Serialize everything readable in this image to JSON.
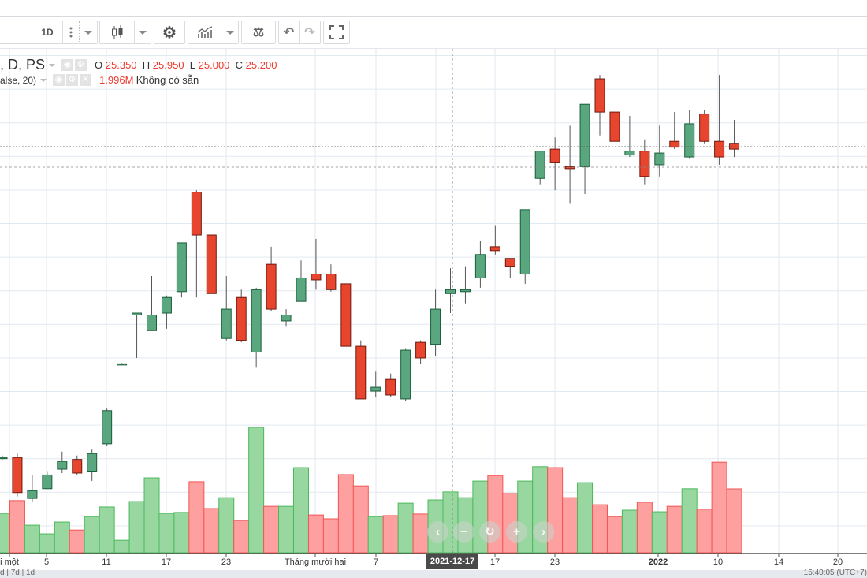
{
  "toolbar": {
    "interval_label": "1D",
    "icons": [
      "candlestick-icon",
      "gear-icon",
      "indicators-icon",
      "compare-scale-icon",
      "undo-icon",
      "redo-icon",
      "fullscreen-icon"
    ]
  },
  "legend": {
    "symbol_suffix": ", D, PS",
    "ohlc": {
      "o_label": "O",
      "o": "25.350",
      "h_label": "H",
      "h": "25.950",
      "l_label": "L",
      "l": "25.000",
      "c_label": "C",
      "c": "25.200"
    },
    "volume_study": "alse, 20)",
    "volume_value": "1.996M",
    "volume_ma": "Không có sẵn"
  },
  "x_axis": {
    "ticks": [
      "i một",
      "5",
      "11",
      "17",
      "23",
      "Tháng mười hai",
      "7",
      "17",
      "23",
      "2022",
      "10",
      "14",
      "20"
    ],
    "crosshair_label": "2021-12-17"
  },
  "bottom_bar": {
    "left": "d | 7d | 1d",
    "right": "15:40:05 (UTC+7)"
  },
  "colors": {
    "up": "#5aa67f",
    "up_border": "#1b5e3c",
    "down": "#e8452f",
    "down_border": "#6e1a0f",
    "vol_up": "#98d8a0",
    "vol_up_border": "#4bb85b",
    "vol_down": "#ffa0a0",
    "vol_down_border": "#f25555",
    "grid": "#e1e9f1"
  },
  "chart_data": {
    "type": "candlestick",
    "ohlc_order": [
      "open",
      "high",
      "low",
      "close"
    ],
    "candles": [
      [
        17.3,
        17.35,
        17.25,
        17.3
      ],
      [
        17.3,
        17.4,
        16.3,
        16.4
      ],
      [
        16.25,
        16.85,
        16.15,
        16.45
      ],
      [
        16.5,
        16.95,
        16.5,
        16.85
      ],
      [
        17.0,
        17.45,
        16.9,
        17.2
      ],
      [
        17.25,
        17.35,
        16.85,
        16.9
      ],
      [
        16.95,
        17.5,
        16.7,
        17.4
      ],
      [
        17.65,
        18.55,
        17.6,
        18.5
      ],
      [
        19.7,
        19.72,
        19.68,
        19.7
      ],
      [
        20.95,
        21.0,
        19.85,
        21.0
      ],
      [
        20.55,
        21.95,
        20.55,
        20.95
      ],
      [
        21.0,
        21.45,
        20.6,
        21.4
      ],
      [
        21.55,
        22.8,
        21.4,
        22.8
      ],
      [
        24.1,
        24.15,
        21.4,
        23.0
      ],
      [
        23.0,
        23.0,
        21.5,
        21.5
      ],
      [
        20.35,
        21.95,
        20.3,
        21.1
      ],
      [
        21.4,
        21.6,
        20.25,
        20.3
      ],
      [
        20.0,
        21.65,
        19.6,
        21.6
      ],
      [
        22.25,
        22.7,
        21.05,
        21.1
      ],
      [
        20.8,
        21.1,
        20.65,
        20.95
      ],
      [
        21.3,
        22.35,
        21.3,
        21.9
      ],
      [
        22.0,
        22.9,
        21.6,
        21.85
      ],
      [
        22.0,
        22.25,
        21.55,
        21.6
      ],
      [
        21.75,
        21.75,
        20.15,
        20.15
      ],
      [
        20.15,
        20.3,
        18.8,
        18.8
      ],
      [
        19.0,
        19.5,
        18.85,
        19.1
      ],
      [
        19.3,
        19.45,
        18.85,
        18.9
      ],
      [
        18.8,
        20.1,
        18.75,
        20.05
      ],
      [
        20.25,
        20.3,
        19.7,
        19.85
      ],
      [
        20.2,
        21.6,
        19.9,
        21.1
      ],
      [
        21.5,
        22.15,
        21.0,
        21.6
      ],
      [
        21.55,
        22.2,
        21.25,
        21.6
      ],
      [
        21.9,
        22.85,
        21.65,
        22.5
      ],
      [
        22.7,
        23.25,
        22.5,
        22.6
      ],
      [
        22.4,
        22.4,
        21.9,
        22.2
      ],
      [
        22.0,
        23.65,
        21.75,
        23.65
      ],
      [
        24.45,
        25.15,
        24.3,
        25.15
      ],
      [
        25.2,
        25.5,
        24.15,
        24.85
      ],
      [
        24.75,
        25.8,
        23.8,
        24.7
      ],
      [
        24.75,
        26.35,
        24.05,
        26.35
      ],
      [
        27.0,
        27.1,
        25.55,
        26.15
      ],
      [
        26.15,
        26.15,
        25.4,
        25.4
      ],
      [
        25.05,
        26.05,
        25.0,
        25.15
      ],
      [
        25.15,
        25.45,
        24.3,
        24.5
      ],
      [
        24.8,
        25.8,
        24.5,
        25.1
      ],
      [
        25.4,
        26.15,
        25.2,
        25.25
      ],
      [
        25.0,
        26.2,
        24.95,
        25.85
      ],
      [
        26.1,
        26.2,
        25.35,
        25.4
      ],
      [
        25.4,
        27.1,
        24.8,
        25.0
      ],
      [
        25.35,
        25.95,
        25.0,
        25.2
      ]
    ],
    "volume_unit": "M",
    "volume": [
      1.23,
      1.63,
      0.86,
      0.59,
      0.96,
      0.71,
      1.13,
      1.43,
      0.39,
      1.6,
      2.34,
      1.23,
      1.26,
      2.22,
      1.38,
      1.72,
      1.01,
      3.92,
      1.45,
      1.45,
      2.66,
      1.18,
      1.06,
      2.44,
      2.09,
      1.13,
      1.16,
      1.55,
      1.21,
      1.65,
      1.9,
      1.72,
      2.24,
      2.41,
      1.85,
      2.24,
      2.69,
      2.66,
      1.72,
      2.19,
      1.5,
      1.13,
      1.33,
      1.58,
      1.28,
      1.45,
      2.0,
      1.36,
      2.83,
      1.996
    ],
    "volume_direction": [
      "up",
      "down",
      "up",
      "up",
      "up",
      "down",
      "up",
      "up",
      "up",
      "up",
      "up",
      "up",
      "up",
      "down",
      "down",
      "up",
      "down",
      "up",
      "down",
      "up",
      "up",
      "down",
      "down",
      "down",
      "down",
      "up",
      "down",
      "up",
      "down",
      "up",
      "up",
      "up",
      "up",
      "down",
      "down",
      "up",
      "up",
      "down",
      "down",
      "up",
      "down",
      "down",
      "up",
      "down",
      "up",
      "down",
      "up",
      "down",
      "down",
      "down"
    ],
    "last_price": 25.2,
    "crosshair_date": "2021-12-17"
  }
}
